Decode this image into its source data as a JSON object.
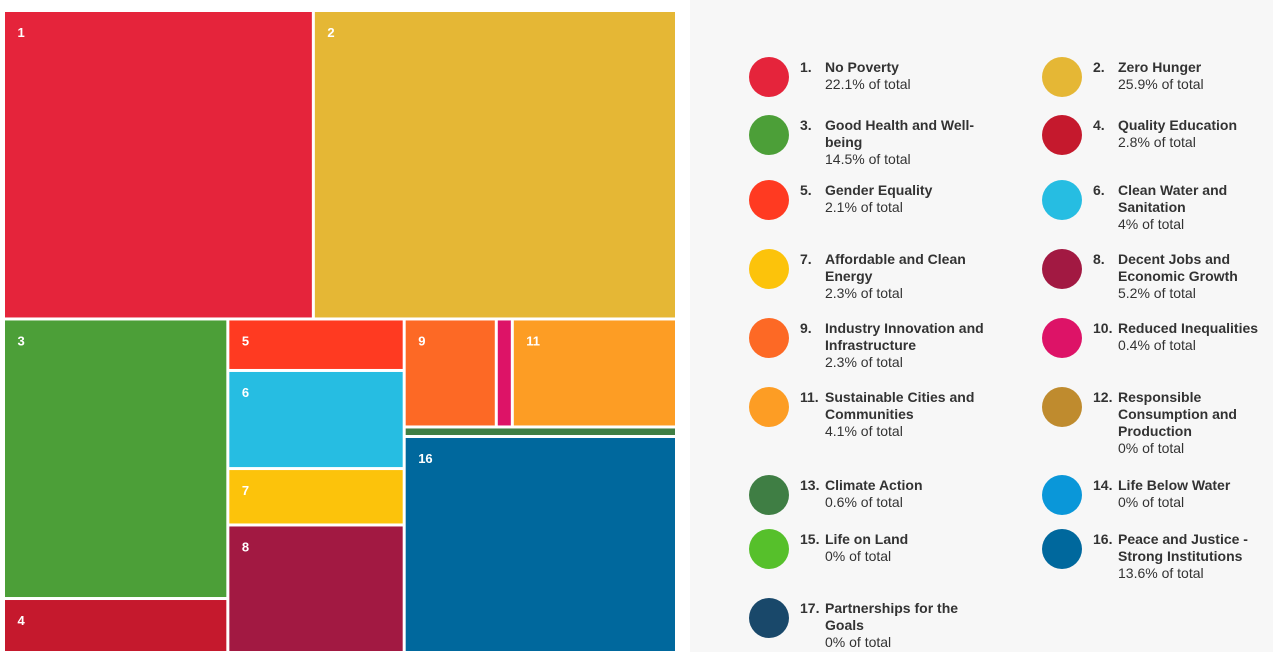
{
  "chart_data": {
    "type": "treemap",
    "codes": [
      "1.",
      "2.",
      "3.",
      "4.",
      "5.",
      "6.",
      "7.",
      "8.",
      "9.",
      "10.",
      "11.",
      "12.",
      "13.",
      "14.",
      "15.",
      "16.",
      "17."
    ],
    "tile_labels": [
      "1",
      "2",
      "3",
      "4",
      "5",
      "6",
      "7",
      "8",
      "9",
      null,
      "11",
      null,
      null,
      null,
      null,
      "16",
      null
    ],
    "categories": [
      "No Poverty",
      "Zero Hunger",
      "Good Health and Well-being",
      "Quality Education",
      "Gender Equality",
      "Clean Water and Sanitation",
      "Affordable and Clean Energy",
      "Decent Jobs and Economic Growth",
      "Industry Innovation and Infrastructure",
      "Reduced Inequalities",
      "Sustainable Cities and Communities",
      "Responsible Consumption and Production",
      "Climate Action",
      "Life Below Water",
      "Life on Land",
      "Peace and Justice - Strong Institutions",
      "Partnerships for the Goals"
    ],
    "values": [
      22.1,
      25.9,
      14.5,
      2.8,
      2.1,
      4,
      2.3,
      5.2,
      2.3,
      0.4,
      4.1,
      0,
      0.6,
      0,
      0,
      13.6,
      0
    ],
    "value_labels": [
      "22.1% of total",
      "25.9% of total",
      "14.5% of total",
      "2.8% of total",
      "2.1% of total",
      "4% of total",
      "2.3% of total",
      "5.2% of total",
      "2.3% of total",
      "0.4% of total",
      "4.1% of total",
      "0% of total",
      "0.6% of total",
      "0% of total",
      "0% of total",
      "13.6% of total",
      "0% of total"
    ],
    "colors": [
      "#e5243b",
      "#e5b735",
      "#4c9f38",
      "#c5192d",
      "#ff3a21",
      "#26bde2",
      "#fcc30b",
      "#a21942",
      "#fd6925",
      "#dd1367",
      "#fd9d24",
      "#bf8b2e",
      "#3f7e44",
      "#0a97d9",
      "#56c02b",
      "#00689d",
      "#19486a"
    ]
  }
}
